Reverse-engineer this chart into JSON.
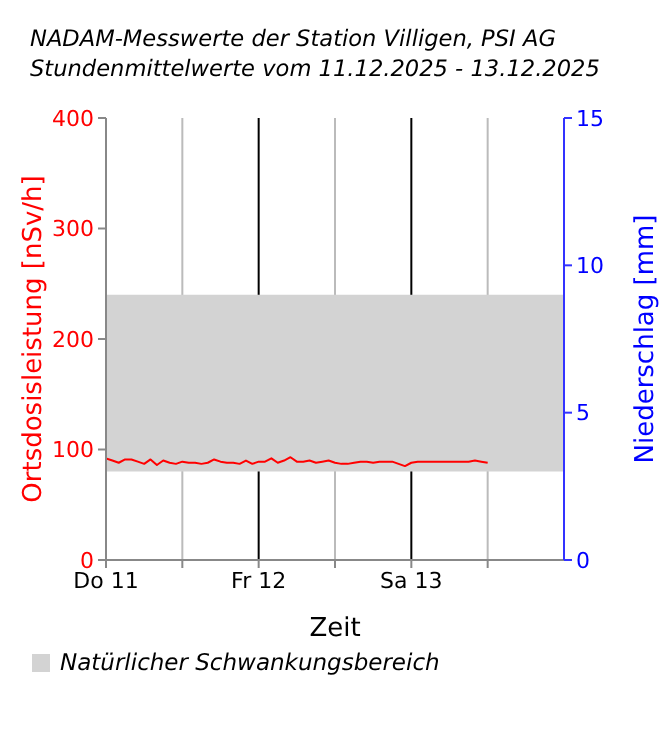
{
  "chart_data": {
    "type": "line",
    "title": "NADAM-Messwerte der Station Villigen, PSI AG",
    "subtitle": "Stundenmittelwerte vom 11.12.2025 - 13.12.2025",
    "xlabel": "Zeit",
    "ylabel": "Ortsdosisleistung [nSv/h]",
    "y2label": "Niederschlag [mm]",
    "x": [
      "2025-12-11T00:00",
      "2025-12-11T01:00",
      "2025-12-11T02:00",
      "2025-12-11T03:00",
      "2025-12-11T04:00",
      "2025-12-11T05:00",
      "2025-12-11T06:00",
      "2025-12-11T07:00",
      "2025-12-11T08:00",
      "2025-12-11T09:00",
      "2025-12-11T10:00",
      "2025-12-11T11:00",
      "2025-12-11T12:00",
      "2025-12-11T13:00",
      "2025-12-11T14:00",
      "2025-12-11T15:00",
      "2025-12-11T16:00",
      "2025-12-11T17:00",
      "2025-12-11T18:00",
      "2025-12-11T19:00",
      "2025-12-11T20:00",
      "2025-12-11T21:00",
      "2025-12-11T22:00",
      "2025-12-11T23:00",
      "2025-12-12T00:00",
      "2025-12-12T01:00",
      "2025-12-12T02:00",
      "2025-12-12T03:00",
      "2025-12-12T04:00",
      "2025-12-12T05:00",
      "2025-12-12T06:00",
      "2025-12-12T07:00",
      "2025-12-12T08:00",
      "2025-12-12T09:00",
      "2025-12-12T10:00",
      "2025-12-12T11:00",
      "2025-12-12T12:00",
      "2025-12-12T13:00",
      "2025-12-12T14:00",
      "2025-12-12T15:00",
      "2025-12-12T16:00",
      "2025-12-12T17:00",
      "2025-12-12T18:00",
      "2025-12-12T19:00",
      "2025-12-12T20:00",
      "2025-12-12T21:00",
      "2025-12-12T22:00",
      "2025-12-12T23:00",
      "2025-12-13T00:00",
      "2025-12-13T01:00",
      "2025-12-13T02:00",
      "2025-12-13T03:00",
      "2025-12-13T04:00",
      "2025-12-13T05:00",
      "2025-12-13T06:00",
      "2025-12-13T07:00",
      "2025-12-13T08:00",
      "2025-12-13T09:00",
      "2025-12-13T10:00",
      "2025-12-13T11:00",
      "2025-12-13T12:00"
    ],
    "series": [
      {
        "color": "#ff0000",
        "values": [
          92,
          90,
          88,
          91,
          91,
          89,
          87,
          91,
          86,
          90,
          88,
          87,
          89,
          88,
          88,
          87,
          88,
          91,
          89,
          88,
          88,
          87,
          90,
          87,
          89,
          89,
          92,
          88,
          90,
          93,
          89,
          89,
          90,
          88,
          89,
          90,
          88,
          87,
          87,
          88,
          89,
          89,
          88,
          89,
          89,
          89,
          87,
          85,
          88,
          89,
          89,
          89,
          89,
          89,
          89,
          89,
          89,
          89,
          90,
          89,
          88
        ]
      }
    ],
    "xlim": [
      "2025-12-11T00:00",
      "2025-12-14T00:00"
    ],
    "xticks": [
      {
        "value": "2025-12-11T00:00",
        "label": "Do 11"
      },
      {
        "value": "2025-12-11T12:00",
        "label": null
      },
      {
        "value": "2025-12-12T00:00",
        "label": "Fr 12"
      },
      {
        "value": "2025-12-12T12:00",
        "label": null
      },
      {
        "value": "2025-12-13T00:00",
        "label": "Sa 13"
      },
      {
        "value": "2025-12-13T12:00",
        "label": null
      }
    ],
    "ylim": [
      0,
      400
    ],
    "yticks": [
      0,
      100,
      200,
      300,
      400
    ],
    "y2lim": [
      0,
      15
    ],
    "y2ticks": [
      0,
      5,
      10,
      15
    ],
    "grid": "x",
    "legend": "bottom left",
    "marker": "none",
    "line_style": "solid",
    "bands": [
      {
        "axis": "y",
        "from": 80,
        "to": 240,
        "label": "Natürlicher Schwankungsbereich",
        "color": "#d3d3d3"
      }
    ]
  }
}
